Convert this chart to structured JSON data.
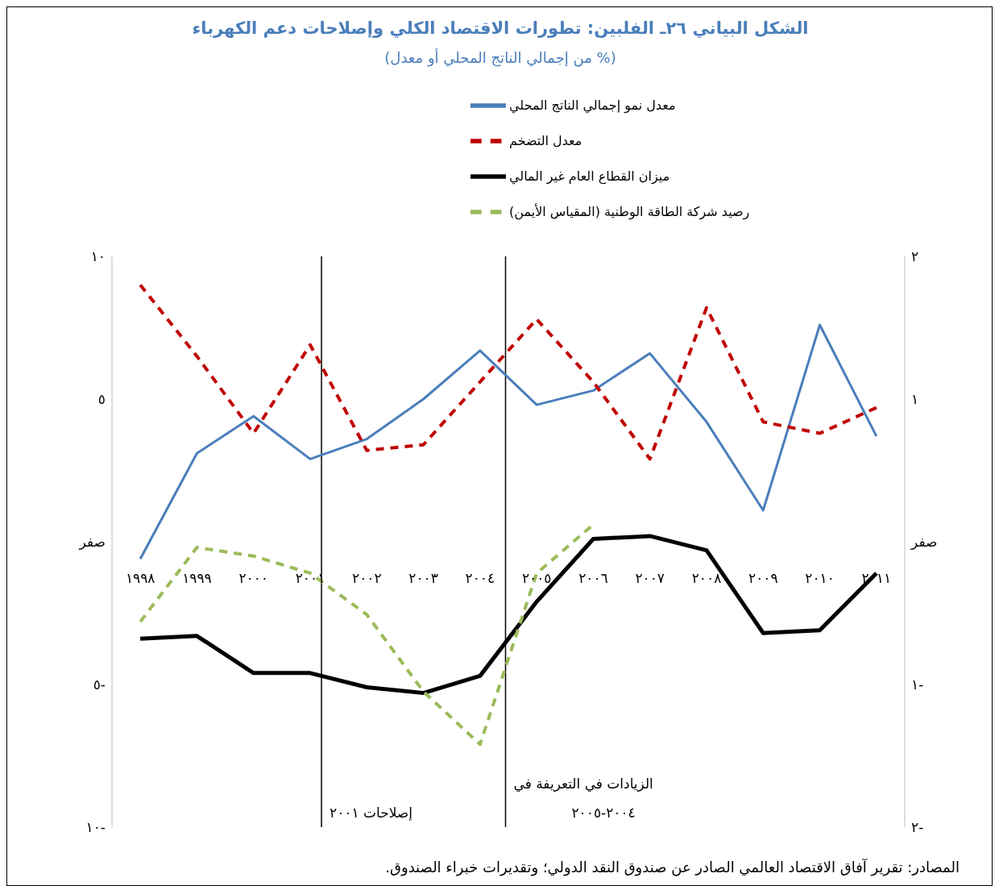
{
  "chart_data": {
    "type": "line",
    "title": "الشكل البياني ٢٦ـ الفلبين: تطورات الاقتصاد الكلي وإصلاحات دعم الكهرباء",
    "subtitle": "(% من إجمالي الناتج المحلي أو معدل)",
    "x": [
      1998,
      1999,
      2000,
      2001,
      2002,
      2003,
      2004,
      2005,
      2006,
      2007,
      2008,
      2009,
      2010,
      2011
    ],
    "xlim": [
      1997.5,
      2011.5
    ],
    "xticks": [
      {
        "value": 1998,
        "label": "١٩٩٨"
      },
      {
        "value": 1999,
        "label": "١٩٩٩"
      },
      {
        "value": 2000,
        "label": "٢٠٠٠"
      },
      {
        "value": 2001,
        "label": "٢٠٠١"
      },
      {
        "value": 2002,
        "label": "٢٠٠٢"
      },
      {
        "value": 2003,
        "label": "٢٠٠٣"
      },
      {
        "value": 2004,
        "label": "٢٠٠٤"
      },
      {
        "value": 2005,
        "label": "٢٠٠٥"
      },
      {
        "value": 2006,
        "label": "٢٠٠٦"
      },
      {
        "value": 2007,
        "label": "٢٠٠٧"
      },
      {
        "value": 2008,
        "label": "٢٠٠٨"
      },
      {
        "value": 2009,
        "label": "٢٠٠٩"
      },
      {
        "value": 2010,
        "label": "٢٠١٠"
      },
      {
        "value": 2011,
        "label": "٢٠١١"
      }
    ],
    "ylim": [
      -10,
      10
    ],
    "yticks": [
      {
        "value": -10,
        "label": "١٠-"
      },
      {
        "value": -5,
        "label": "٥-"
      },
      {
        "value": 0,
        "label": "صفر"
      },
      {
        "value": 5,
        "label": "٥"
      },
      {
        "value": 10,
        "label": "١٠"
      }
    ],
    "y2lim": [
      -2,
      2
    ],
    "y2ticks": [
      {
        "value": -2,
        "label": "٢-"
      },
      {
        "value": -1,
        "label": "١-"
      },
      {
        "value": 0,
        "label": "صفر"
      },
      {
        "value": 1,
        "label": "١"
      },
      {
        "value": 2,
        "label": "٢"
      }
    ],
    "series": [
      {
        "name": "معدل نمو إجمالي الناتج المحلي",
        "color": "#4a7ebb",
        "line_style": "solid",
        "values": [
          -0.6,
          3.1,
          4.4,
          2.9,
          3.6,
          5.0,
          6.7,
          4.8,
          5.3,
          6.6,
          4.2,
          1.1,
          7.6,
          3.7
        ]
      },
      {
        "name": "معدل التضخم",
        "color": "#c00000",
        "line_style": "dashed",
        "values": [
          9.0,
          6.5,
          3.8,
          6.9,
          3.2,
          3.4,
          5.6,
          7.8,
          5.6,
          2.9,
          8.2,
          4.2,
          3.8,
          4.7
        ]
      },
      {
        "name": "ميزان القطاع العام غير المالي",
        "color": "#000000",
        "line_style": "solid",
        "values": [
          -3.4,
          -3.3,
          -4.6,
          -4.6,
          -5.1,
          -5.3,
          -4.7,
          -2.1,
          0.1,
          0.2,
          -0.3,
          -3.2,
          -3.1,
          -1.1
        ]
      },
      {
        "name": "رصيد شركة الطاقة الوطنية (المقياس الأيمن)",
        "color": "#9bbb59",
        "line_style": "dashed",
        "axis": "y2",
        "values": [
          -0.56,
          -0.04,
          -0.1,
          -0.22,
          -0.51,
          -1.05,
          -1.42,
          -0.22,
          0.12,
          null,
          null,
          null,
          null,
          null
        ]
      }
    ],
    "ref_lines": [
      {
        "axis": "x",
        "value": 2001.2,
        "label": "إصلاحات ٢٠٠١",
        "color": "#000000"
      },
      {
        "axis": "x",
        "value": 2004.45,
        "label": "الزيادات في التعريفة في ٢٠٠٤-٢٠٠٥",
        "color": "#000000"
      }
    ],
    "legend": "top",
    "marker": "none",
    "annotations": [
      "المصادر: تقرير آفاق الاقتصاد العالمي الصادر عن صندوق النقد الدولي؛ وتقديرات خبراء الصندوق."
    ]
  }
}
